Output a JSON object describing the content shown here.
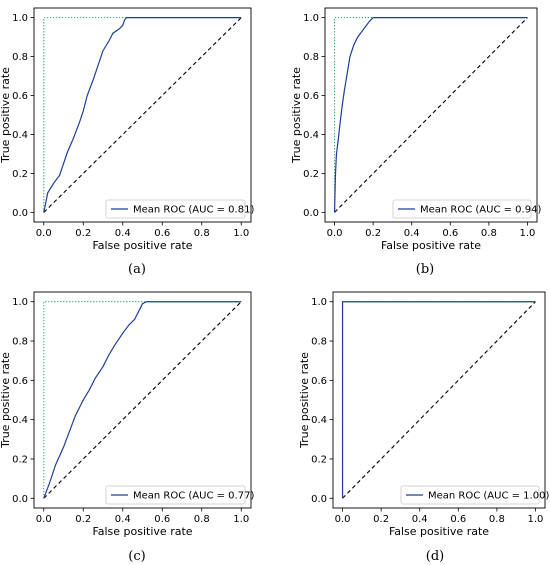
{
  "chart_data": [
    {
      "type": "line",
      "caption": "(a)",
      "xlabel": "False positive rate",
      "ylabel": "True positive rate",
      "xlim": [
        0,
        1
      ],
      "ylim": [
        0,
        1
      ],
      "xticks": [
        "0.0",
        "0.2",
        "0.4",
        "0.6",
        "0.8",
        "1.0"
      ],
      "yticks": [
        "0.0",
        "0.2",
        "0.4",
        "0.6",
        "0.8",
        "1.0"
      ],
      "legend_position": "lower-right",
      "series": [
        {
          "name": "Mean ROC (AUC = 0.81)",
          "style": "solid",
          "color": "#1f3f9a",
          "x": [
            0,
            0.02,
            0.05,
            0.08,
            0.1,
            0.12,
            0.15,
            0.18,
            0.2,
            0.22,
            0.25,
            0.28,
            0.3,
            0.33,
            0.35,
            0.38,
            0.4,
            0.41,
            0.42,
            0.45,
            0.5,
            0.6,
            0.8,
            1.0
          ],
          "y": [
            0,
            0.1,
            0.15,
            0.19,
            0.25,
            0.31,
            0.38,
            0.46,
            0.52,
            0.6,
            0.68,
            0.77,
            0.83,
            0.88,
            0.92,
            0.94,
            0.96,
            0.99,
            1.0,
            1.0,
            1.0,
            1.0,
            1.0,
            1.0
          ]
        },
        {
          "name": "",
          "style": "dashed",
          "color": "#000000",
          "x": [
            0,
            1
          ],
          "y": [
            0,
            1
          ]
        },
        {
          "name": "",
          "style": "dotted",
          "color": "#2a9d6e",
          "x": [
            0,
            0,
            1
          ],
          "y": [
            0,
            1,
            1
          ]
        }
      ]
    },
    {
      "type": "line",
      "caption": "(b)",
      "xlabel": "False positive rate",
      "ylabel": "True positive rate",
      "xlim": [
        0,
        1
      ],
      "ylim": [
        0,
        1
      ],
      "xticks": [
        "0.0",
        "0.2",
        "0.4",
        "0.6",
        "0.8",
        "1.0"
      ],
      "yticks": [
        "0.0",
        "0.2",
        "0.4",
        "0.6",
        "0.8",
        "1.0"
      ],
      "legend_position": "lower-right",
      "series": [
        {
          "name": "Mean ROC (AUC = 0.94)",
          "style": "solid",
          "color": "#1f3f9a",
          "x": [
            0,
            0.005,
            0.01,
            0.02,
            0.03,
            0.04,
            0.05,
            0.06,
            0.07,
            0.08,
            0.1,
            0.12,
            0.15,
            0.18,
            0.2,
            0.22,
            0.3,
            0.5,
            0.8,
            1.0
          ],
          "y": [
            0,
            0.2,
            0.3,
            0.38,
            0.47,
            0.55,
            0.62,
            0.68,
            0.74,
            0.8,
            0.86,
            0.9,
            0.94,
            0.98,
            1.0,
            1.0,
            1.0,
            1.0,
            1.0,
            1.0
          ]
        },
        {
          "name": "",
          "style": "dashed",
          "color": "#000000",
          "x": [
            0,
            1
          ],
          "y": [
            0,
            1
          ]
        },
        {
          "name": "",
          "style": "dotted",
          "color": "#2a9d6e",
          "x": [
            0,
            0,
            1
          ],
          "y": [
            0,
            1,
            1
          ]
        }
      ]
    },
    {
      "type": "line",
      "caption": "(c)",
      "xlabel": "False positive rate",
      "ylabel": "True positive rate",
      "xlim": [
        0,
        1
      ],
      "ylim": [
        0,
        1
      ],
      "xticks": [
        "0.0",
        "0.2",
        "0.4",
        "0.6",
        "0.8",
        "1.0"
      ],
      "yticks": [
        "0.0",
        "0.2",
        "0.4",
        "0.6",
        "0.8",
        "1.0"
      ],
      "legend_position": "lower-right",
      "series": [
        {
          "name": "Mean ROC (AUC = 0.77)",
          "style": "solid",
          "color": "#1f3f9a",
          "x": [
            0,
            0.03,
            0.06,
            0.1,
            0.13,
            0.16,
            0.2,
            0.23,
            0.26,
            0.3,
            0.33,
            0.36,
            0.4,
            0.43,
            0.46,
            0.48,
            0.5,
            0.52,
            0.55,
            0.6,
            0.8,
            1.0
          ],
          "y": [
            0,
            0.08,
            0.17,
            0.26,
            0.34,
            0.42,
            0.5,
            0.55,
            0.61,
            0.67,
            0.73,
            0.78,
            0.84,
            0.88,
            0.91,
            0.95,
            0.99,
            1.0,
            1.0,
            1.0,
            1.0,
            1.0
          ]
        },
        {
          "name": "",
          "style": "dashed",
          "color": "#000000",
          "x": [
            0,
            1
          ],
          "y": [
            0,
            1
          ]
        },
        {
          "name": "",
          "style": "dotted",
          "color": "#2a9d6e",
          "x": [
            0,
            0,
            1
          ],
          "y": [
            0,
            1,
            1
          ]
        }
      ]
    },
    {
      "type": "line",
      "caption": "(d)",
      "xlabel": "False positive rate",
      "ylabel": "True positive rate",
      "xlim": [
        0,
        1
      ],
      "ylim": [
        0,
        1
      ],
      "xticks": [
        "0.0",
        "0.2",
        "0.4",
        "0.6",
        "0.8",
        "1.0"
      ],
      "yticks": [
        "0.0",
        "0.2",
        "0.4",
        "0.6",
        "0.8",
        "1.0"
      ],
      "legend_position": "lower-right",
      "series": [
        {
          "name": "Mean ROC (AUC = 1.00)",
          "style": "solid",
          "color": "#1f3f9a",
          "x": [
            0,
            0,
            1.0
          ],
          "y": [
            0,
            1.0,
            1.0
          ]
        },
        {
          "name": "",
          "style": "dashed",
          "color": "#000000",
          "x": [
            0,
            1
          ],
          "y": [
            0,
            1
          ]
        },
        {
          "name": "",
          "style": "dotted",
          "color": "#2a9d6e",
          "x": [
            0,
            0,
            1
          ],
          "y": [
            0,
            1,
            1
          ]
        }
      ]
    }
  ]
}
